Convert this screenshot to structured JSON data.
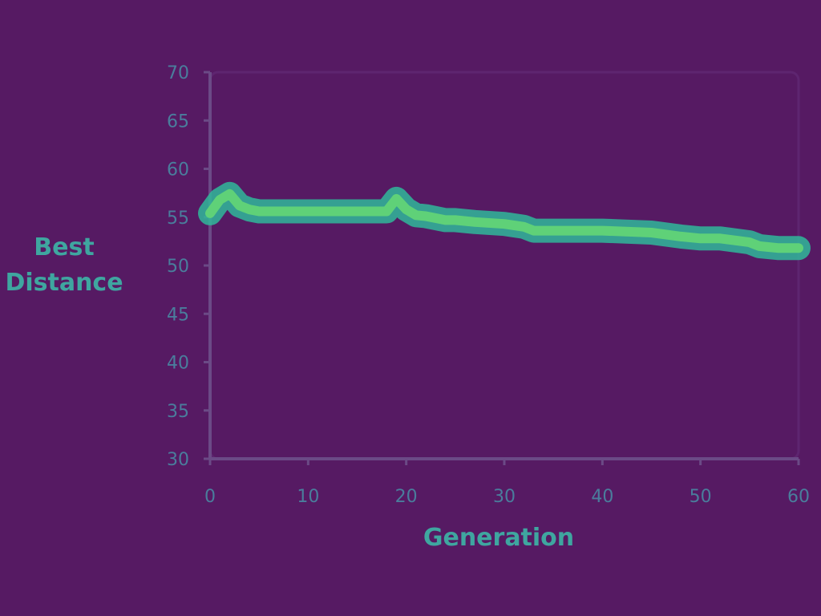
{
  "chart_data": {
    "type": "line",
    "xlabel": "Generation",
    "ylabel": "Best Distance",
    "x_ticks": [
      "0",
      "10",
      "20",
      "30",
      "40",
      "50",
      "60"
    ],
    "y_ticks": [
      "70",
      "65",
      "60",
      "55",
      "50",
      "45",
      "40",
      "35",
      "30"
    ],
    "xlim": [
      0,
      60
    ],
    "ylim": [
      30,
      70
    ],
    "grid": false,
    "series": [
      {
        "x": [
          0,
          1,
          2,
          3,
          4,
          5,
          10,
          15,
          18,
          19,
          20,
          21,
          22,
          24,
          25,
          27,
          30,
          32,
          33,
          35,
          40,
          45,
          48,
          50,
          52,
          55,
          56,
          58,
          60
        ],
        "y": [
          55.4,
          56.8,
          57.4,
          56.2,
          55.8,
          55.6,
          55.6,
          55.6,
          55.6,
          56.9,
          55.8,
          55.2,
          55.1,
          54.7,
          54.7,
          54.5,
          54.3,
          54.0,
          53.6,
          53.6,
          53.6,
          53.4,
          53.0,
          52.8,
          52.8,
          52.4,
          52.0,
          51.8,
          51.8
        ]
      }
    ],
    "colors": {
      "background": "#561a63",
      "line_outer": "#2fb89a",
      "line_inner": "#5fd178",
      "label": "#4a7d9c"
    }
  }
}
